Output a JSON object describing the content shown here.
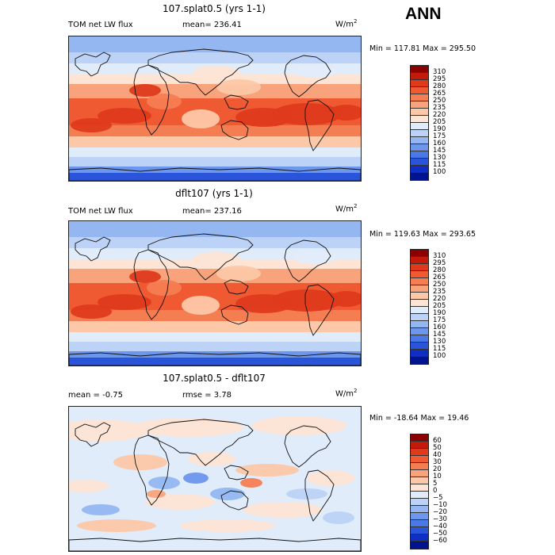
{
  "season": "ANN",
  "units_base": "W/m",
  "units_exp": "2",
  "panels": [
    {
      "title": "107.splat0.5 (yrs 1-1)",
      "left_label": "TOM net LW flux",
      "stat_label": "mean= 236.41",
      "minmax": "Min = 117.81 Max = 295.50",
      "colorbar": {
        "labels": [
          "310",
          "295",
          "280",
          "265",
          "250",
          "235",
          "220",
          "205",
          "190",
          "175",
          "160",
          "145",
          "130",
          "115",
          "100"
        ],
        "colors": [
          "#8b0000",
          "#c41a0b",
          "#df3a1c",
          "#ef5a32",
          "#f57d52",
          "#f9a37c",
          "#fcc8a8",
          "#fde4d4",
          "#e1ecfb",
          "#bcd3f7",
          "#94b7f2",
          "#6d97ec",
          "#4a78e6",
          "#2a55da",
          "#0f2fc4",
          "#001490"
        ]
      },
      "palette": "abs1"
    },
    {
      "title": "dflt107 (yrs 1-1)",
      "left_label": "TOM net LW flux",
      "stat_label": "mean= 237.16",
      "minmax": "Min = 119.63 Max = 293.65",
      "colorbar": {
        "labels": [
          "310",
          "295",
          "280",
          "265",
          "250",
          "235",
          "220",
          "205",
          "190",
          "175",
          "160",
          "145",
          "130",
          "115",
          "100"
        ],
        "colors": [
          "#8b0000",
          "#c41a0b",
          "#df3a1c",
          "#ef5a32",
          "#f57d52",
          "#f9a37c",
          "#fcc8a8",
          "#fde4d4",
          "#e1ecfb",
          "#bcd3f7",
          "#94b7f2",
          "#6d97ec",
          "#4a78e6",
          "#2a55da",
          "#0f2fc4",
          "#001490"
        ]
      },
      "palette": "abs2"
    },
    {
      "title": "107.splat0.5 - dflt107",
      "left_label": "mean =   -0.75",
      "stat_label": "rmse =    3.78",
      "minmax": "Min = -18.64 Max =  19.46",
      "colorbar": {
        "labels": [
          "60",
          "50",
          "40",
          "30",
          "20",
          "10",
          "5",
          "0",
          "−5",
          "−10",
          "−20",
          "−30",
          "−40",
          "−50",
          "−60"
        ],
        "colors": [
          "#8b0000",
          "#c41a0b",
          "#df3a1c",
          "#ef5a32",
          "#f57d52",
          "#f9a37c",
          "#fcc8a8",
          "#fde4d4",
          "#e1ecfb",
          "#bcd3f7",
          "#94b7f2",
          "#6d97ec",
          "#4a78e6",
          "#2a55da",
          "#0f2fc4",
          "#001490"
        ]
      },
      "palette": "diff"
    }
  ]
}
